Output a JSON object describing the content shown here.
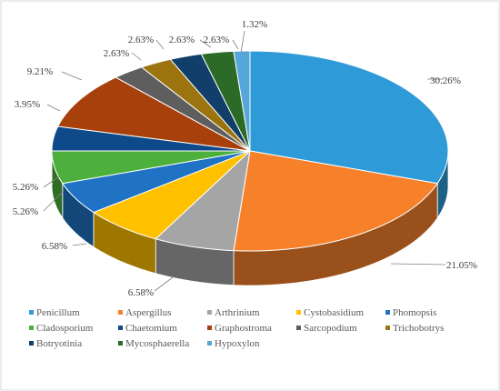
{
  "chart_data": {
    "type": "pie",
    "title": "",
    "style": "3d-exploded-none",
    "legend_position": "bottom",
    "categories": [
      "Penicillum",
      "Aspergillus",
      "Arthrinium",
      "Cystobasidium",
      "Phomopsis",
      "Cladosporium",
      "Chaetomium",
      "Graphostroma",
      "Sarcopodium",
      "Trichobotrys",
      "Botryotinia",
      "Mycosphaerella",
      "Hypoxylon"
    ],
    "values": [
      30.26,
      21.05,
      6.58,
      6.58,
      5.26,
      5.26,
      3.95,
      9.21,
      2.63,
      2.63,
      2.63,
      2.63,
      1.32
    ],
    "data_labels": [
      "30.26%",
      "21.05%",
      "6.58%",
      "6.58%",
      "5.26%",
      "5.26%",
      "3.95%",
      "9.21%",
      "2.63%",
      "2.63%",
      "2.63%",
      "2.63%",
      "1.32%"
    ],
    "colors": [
      "#2E9BD8",
      "#F7812A",
      "#A5A5A5",
      "#FFC000",
      "#1F72C4",
      "#4DAF3C",
      "#0E4A8A",
      "#A8400B",
      "#5E5E5E",
      "#9B7410",
      "#123E6A",
      "#2C6A28",
      "#57A6DA"
    ]
  }
}
